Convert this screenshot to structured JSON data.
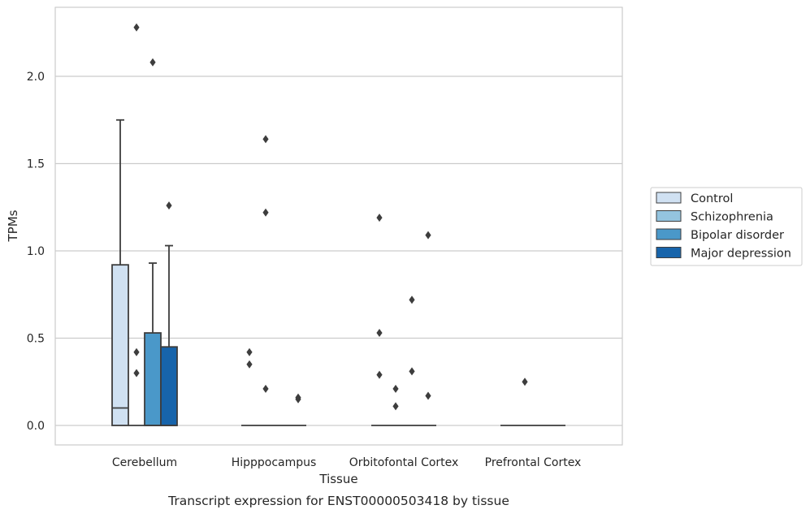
{
  "chart_data": {
    "type": "box",
    "xlabel": "Tissue",
    "ylabel": "TPMs",
    "caption": "Transcript expression for ENST00000503418 by tissue",
    "ylim": [
      -0.11,
      2.4
    ],
    "yticks": [
      0.0,
      0.5,
      1.0,
      1.5,
      2.0
    ],
    "ytick_labels": [
      "0.0",
      "0.5",
      "1.0",
      "1.5",
      "2.0"
    ],
    "grid": "horizontal",
    "legend_position": "right",
    "categories": [
      "Cerebellum",
      "Hipppocampus",
      "Orbitofontal Cortex",
      "Prefrontal Cortex"
    ],
    "series": [
      {
        "name": "Control",
        "color": "#d0e1f2",
        "boxes": [
          {
            "q1": 0.0,
            "median": 0.1,
            "q3": 0.92,
            "whisker_low": 0.0,
            "whisker_high": 1.75,
            "outliers": []
          },
          {
            "q1": 0.0,
            "median": 0.0,
            "q3": 0.0,
            "whisker_low": 0.0,
            "whisker_high": 0.0,
            "outliers": [
              0.42,
              0.35
            ]
          },
          {
            "q1": 0.0,
            "median": 0.0,
            "q3": 0.0,
            "whisker_low": 0.0,
            "whisker_high": 0.0,
            "outliers": [
              1.19,
              0.53,
              0.29
            ]
          },
          {
            "q1": 0.0,
            "median": 0.0,
            "q3": 0.0,
            "whisker_low": 0.0,
            "whisker_high": 0.0,
            "outliers": []
          }
        ]
      },
      {
        "name": "Schizophrenia",
        "color": "#94c4df",
        "boxes": [
          {
            "q1": 0.0,
            "median": 0.0,
            "q3": 0.0,
            "whisker_low": 0.0,
            "whisker_high": 0.0,
            "outliers": [
              2.28,
              0.42,
              0.3
            ]
          },
          {
            "q1": 0.0,
            "median": 0.0,
            "q3": 0.0,
            "whisker_low": 0.0,
            "whisker_high": 0.0,
            "outliers": [
              1.64,
              1.22,
              0.21
            ]
          },
          {
            "q1": 0.0,
            "median": 0.0,
            "q3": 0.0,
            "whisker_low": 0.0,
            "whisker_high": 0.0,
            "outliers": [
              0.21,
              0.11
            ]
          },
          {
            "q1": 0.0,
            "median": 0.0,
            "q3": 0.0,
            "whisker_low": 0.0,
            "whisker_high": 0.0,
            "outliers": [
              0.25
            ]
          }
        ]
      },
      {
        "name": "Bipolar disorder",
        "color": "#4a98c9",
        "boxes": [
          {
            "q1": 0.0,
            "median": 0.0,
            "q3": 0.53,
            "whisker_low": 0.0,
            "whisker_high": 0.93,
            "outliers": [
              2.08
            ]
          },
          {
            "q1": 0.0,
            "median": 0.0,
            "q3": 0.0,
            "whisker_low": 0.0,
            "whisker_high": 0.0,
            "outliers": []
          },
          {
            "q1": 0.0,
            "median": 0.0,
            "q3": 0.0,
            "whisker_low": 0.0,
            "whisker_high": 0.0,
            "outliers": [
              0.72,
              0.31
            ]
          },
          {
            "q1": 0.0,
            "median": 0.0,
            "q3": 0.0,
            "whisker_low": 0.0,
            "whisker_high": 0.0,
            "outliers": []
          }
        ]
      },
      {
        "name": "Major depression",
        "color": "#1764ab",
        "boxes": [
          {
            "q1": 0.0,
            "median": 0.0,
            "q3": 0.45,
            "whisker_low": 0.0,
            "whisker_high": 1.03,
            "outliers": [
              1.26
            ]
          },
          {
            "q1": 0.0,
            "median": 0.0,
            "q3": 0.0,
            "whisker_low": 0.0,
            "whisker_high": 0.0,
            "outliers": [
              0.16,
              0.15
            ]
          },
          {
            "q1": 0.0,
            "median": 0.0,
            "q3": 0.0,
            "whisker_low": 0.0,
            "whisker_high": 0.0,
            "outliers": [
              1.09,
              0.17
            ]
          },
          {
            "q1": 0.0,
            "median": 0.0,
            "q3": 0.0,
            "whisker_low": 0.0,
            "whisker_high": 0.0,
            "outliers": []
          }
        ]
      }
    ]
  },
  "colors": {
    "grid": "#cccccc",
    "frame": "#cccccc",
    "box_edge": "#3d3d3d",
    "outlier": "#3d3d3d",
    "text": "#262626"
  }
}
